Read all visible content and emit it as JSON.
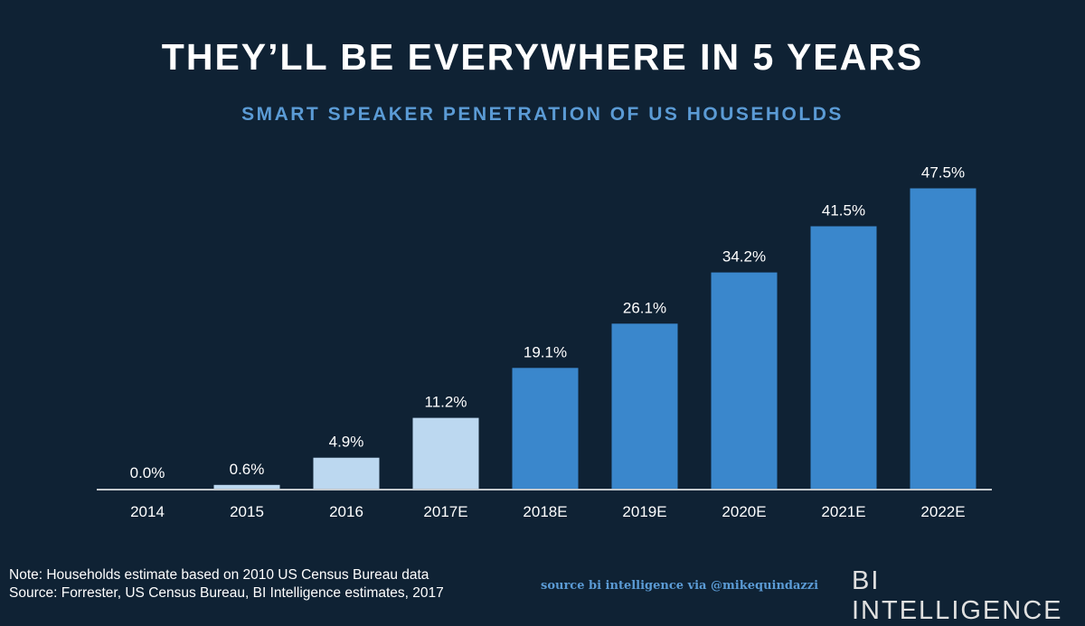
{
  "header": {
    "title": "THEY’LL BE EVERYWHERE IN 5 YEARS",
    "subtitle": "SMART SPEAKER PENETRATION OF US HOUSEHOLDS"
  },
  "chart_data": {
    "type": "bar",
    "categories": [
      "2014",
      "2015",
      "2016",
      "2017E",
      "2018E",
      "2019E",
      "2020E",
      "2021E",
      "2022E"
    ],
    "values": [
      0.0,
      0.6,
      4.9,
      11.2,
      19.1,
      26.1,
      34.2,
      41.5,
      47.5
    ],
    "value_labels": [
      "0.0%",
      "0.6%",
      "4.9%",
      "11.2%",
      "19.1%",
      "26.1%",
      "34.2%",
      "41.5%",
      "47.5%"
    ],
    "title": "THEY’LL BE EVERYWHERE IN 5 YEARS",
    "subtitle": "SMART SPEAKER PENETRATION OF US HOUSEHOLDS",
    "ylim": [
      0,
      50
    ],
    "grid": false,
    "legend": "none",
    "colors": {
      "actual": "#bcd8f0",
      "estimate": "#3a87cc",
      "background": "#0f2234",
      "axis": "#ffffff"
    },
    "estimate_from_index": 4
  },
  "footer": {
    "note_line1": "Note: Households estimate based on 2010 US Census Bureau data",
    "note_line2": "Source: Forrester, US Census Bureau, BI Intelligence estimates, 2017",
    "credit": "source bi intelligence via @mikequindazzi",
    "brand": "BI INTELLIGENCE"
  }
}
